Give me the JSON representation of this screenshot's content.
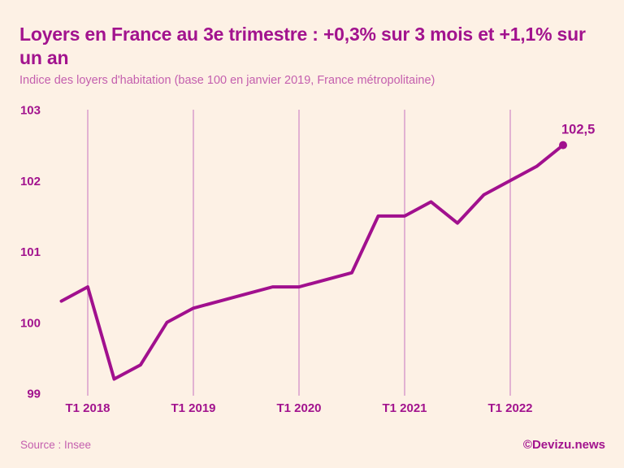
{
  "page": {
    "title": "Loyers en France au 3e trimestre : +0,3% sur 3 mois et +1,1% sur un an",
    "subtitle": "Indice des loyers d'habitation (base 100 en janvier 2019, France métropolitaine)",
    "source": "Source : Insee",
    "credit": "©Devizu.news"
  },
  "colors": {
    "background": "#fdf1e5",
    "title": "#a2138e",
    "subtitle": "#c45fae",
    "line": "#a1108e",
    "gridline": "#d189c6",
    "tick_label": "#a2138e",
    "source": "#c45fae",
    "credit": "#a2138e"
  },
  "chart_data": {
    "type": "line",
    "title": "Loyers en France au 3e trimestre : +0,3% sur 3 mois et +1,1% sur un an",
    "subtitle": "Indice des loyers d'habitation (base 100 en janvier 2019, France métropolitaine)",
    "x": [
      "T4 2017",
      "T1 2018",
      "T2 2018",
      "T3 2018",
      "T4 2018",
      "T1 2019",
      "T2 2019",
      "T3 2019",
      "T4 2019",
      "T1 2020",
      "T2 2020",
      "T3 2020",
      "T4 2020",
      "T1 2021",
      "T2 2021",
      "T3 2021",
      "T4 2021",
      "T1 2022",
      "T2 2022",
      "T3 2022"
    ],
    "values": [
      100.3,
      100.5,
      99.2,
      99.4,
      100.0,
      100.2,
      100.3,
      100.4,
      100.5,
      100.5,
      100.6,
      100.7,
      101.5,
      101.5,
      101.7,
      101.4,
      101.8,
      102.0,
      102.2,
      102.5
    ],
    "x_tick_labels": [
      "T1 2018",
      "T1 2019",
      "T1 2020",
      "T1 2021",
      "T1 2022"
    ],
    "y_ticks": [
      99,
      100,
      101,
      102,
      103
    ],
    "ylim": [
      99,
      103
    ],
    "grid": "vertical",
    "legend": "none",
    "last_point_label": "102,5"
  }
}
